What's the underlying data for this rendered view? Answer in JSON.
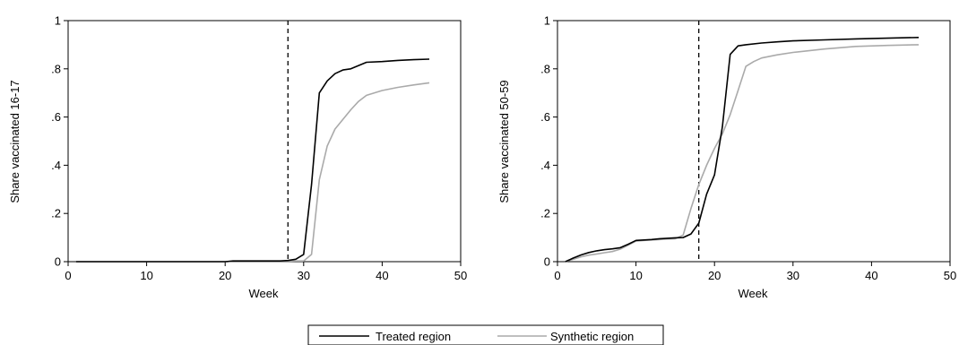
{
  "chart_data": [
    {
      "type": "line",
      "xlabel": "Week",
      "ylabel": "Share vaccinated 16-17",
      "xlim": [
        0,
        50
      ],
      "ylim": [
        0,
        1
      ],
      "xticks": [
        0,
        10,
        20,
        30,
        40,
        50
      ],
      "yticks": [
        0,
        0.2,
        0.4,
        0.6,
        0.8,
        1
      ],
      "ytick_labels": [
        "0",
        ".2",
        ".4",
        ".6",
        ".8",
        "1"
      ],
      "vline": 28,
      "series": [
        {
          "name": "Treated region",
          "color": "#000000",
          "x": [
            1,
            20,
            21,
            27,
            28,
            29,
            30,
            31,
            32,
            33,
            34,
            35,
            36,
            38,
            40,
            42,
            44,
            46
          ],
          "y": [
            0,
            0,
            0.003,
            0.003,
            0.005,
            0.01,
            0.03,
            0.32,
            0.7,
            0.75,
            0.78,
            0.795,
            0.8,
            0.827,
            0.83,
            0.835,
            0.838,
            0.84
          ]
        },
        {
          "name": "Synthetic region",
          "color": "#aaaaaa",
          "x": [
            1,
            20,
            21,
            28,
            29,
            30,
            31,
            32,
            33,
            34,
            35,
            36,
            37,
            38,
            40,
            42,
            44,
            46
          ],
          "y": [
            0,
            0,
            0.002,
            0.002,
            0.003,
            0.003,
            0.03,
            0.34,
            0.48,
            0.55,
            0.59,
            0.63,
            0.665,
            0.69,
            0.71,
            0.723,
            0.733,
            0.742
          ]
        }
      ]
    },
    {
      "type": "line",
      "xlabel": "Week",
      "ylabel": "Share vaccinated 50-59",
      "xlim": [
        0,
        50
      ],
      "ylim": [
        0,
        1
      ],
      "xticks": [
        0,
        10,
        20,
        30,
        40,
        50
      ],
      "yticks": [
        0,
        0.2,
        0.4,
        0.6,
        0.8,
        1
      ],
      "ytick_labels": [
        "0",
        ".2",
        ".4",
        ".6",
        ".8",
        "1"
      ],
      "vline": 18,
      "series": [
        {
          "name": "Treated region",
          "color": "#000000",
          "x": [
            1,
            2,
            3,
            4,
            5,
            6,
            7,
            8,
            9,
            10,
            11,
            12,
            13,
            14,
            15,
            16,
            17,
            18,
            19,
            20,
            21,
            22,
            23,
            24,
            26,
            28,
            30,
            34,
            38,
            42,
            46
          ],
          "y": [
            0,
            0.015,
            0.028,
            0.038,
            0.045,
            0.05,
            0.053,
            0.058,
            0.072,
            0.088,
            0.09,
            0.092,
            0.095,
            0.097,
            0.099,
            0.1,
            0.115,
            0.16,
            0.28,
            0.36,
            0.56,
            0.86,
            0.895,
            0.9,
            0.907,
            0.912,
            0.916,
            0.92,
            0.924,
            0.927,
            0.93
          ]
        },
        {
          "name": "Synthetic region",
          "color": "#aaaaaa",
          "x": [
            1,
            2,
            3,
            4,
            5,
            6,
            7,
            8,
            9,
            10,
            11,
            12,
            13,
            14,
            15,
            16,
            17,
            18,
            19,
            20,
            21,
            22,
            23,
            24,
            25,
            26,
            28,
            30,
            34,
            38,
            42,
            46
          ],
          "y": [
            0,
            0.01,
            0.02,
            0.027,
            0.032,
            0.037,
            0.042,
            0.052,
            0.068,
            0.085,
            0.088,
            0.09,
            0.092,
            0.094,
            0.095,
            0.11,
            0.22,
            0.32,
            0.4,
            0.47,
            0.53,
            0.61,
            0.71,
            0.81,
            0.83,
            0.845,
            0.858,
            0.868,
            0.882,
            0.893,
            0.897,
            0.9
          ]
        }
      ]
    }
  ],
  "legend": {
    "items": [
      {
        "label": "Treated region",
        "color": "#000000"
      },
      {
        "label": "Synthetic region",
        "color": "#aaaaaa"
      }
    ]
  }
}
